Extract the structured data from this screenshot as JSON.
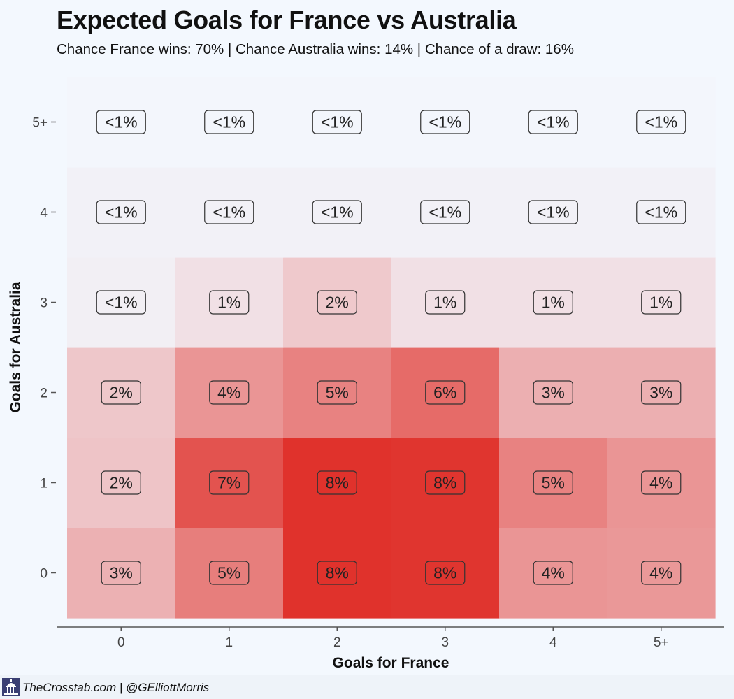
{
  "title": "Expected Goals for France vs Australia",
  "subtitle": "Chance France wins: 70% | Chance Australia wins: 14% | Chance of a draw: 16%",
  "footer": {
    "text": "TheCrosstab.com | @GElliottMorris",
    "logo_icon": "capitol-building-icon"
  },
  "colors": {
    "background": "#f3f8fe",
    "low": "#f3f8fe",
    "high": "#e0302a"
  },
  "chart_data": {
    "type": "heatmap",
    "xlabel": "Goals for France",
    "ylabel": "Goals for Australia",
    "x_categories": [
      "0",
      "1",
      "2",
      "3",
      "4",
      "5+"
    ],
    "y_categories": [
      "0",
      "1",
      "2",
      "3",
      "4",
      "5+"
    ],
    "cell_labels": [
      [
        "3%",
        "5%",
        "8%",
        "8%",
        "4%",
        "4%"
      ],
      [
        "2%",
        "7%",
        "8%",
        "8%",
        "5%",
        "4%"
      ],
      [
        "2%",
        "4%",
        "5%",
        "6%",
        "3%",
        "3%"
      ],
      [
        "<1%",
        "1%",
        "2%",
        "1%",
        "1%",
        "1%"
      ],
      [
        "<1%",
        "<1%",
        "<1%",
        "<1%",
        "<1%",
        "<1%"
      ],
      [
        "<1%",
        "<1%",
        "<1%",
        "<1%",
        "<1%",
        "<1%"
      ]
    ],
    "values": [
      [
        3.0,
        5.2,
        8.4,
        8.3,
        4.2,
        4.1
      ],
      [
        2.2,
        7.0,
        8.4,
        8.3,
        5.0,
        4.2
      ],
      [
        2.1,
        4.2,
        5.0,
        6.0,
        3.1,
        3.1
      ],
      [
        0.4,
        1.0,
        2.0,
        1.0,
        1.0,
        1.0
      ],
      [
        0.3,
        0.3,
        0.3,
        0.3,
        0.3,
        0.3
      ],
      [
        0.1,
        0.1,
        0.1,
        0.1,
        0.1,
        0.1
      ]
    ],
    "value_range": [
      0,
      8.5
    ],
    "grid": false
  }
}
